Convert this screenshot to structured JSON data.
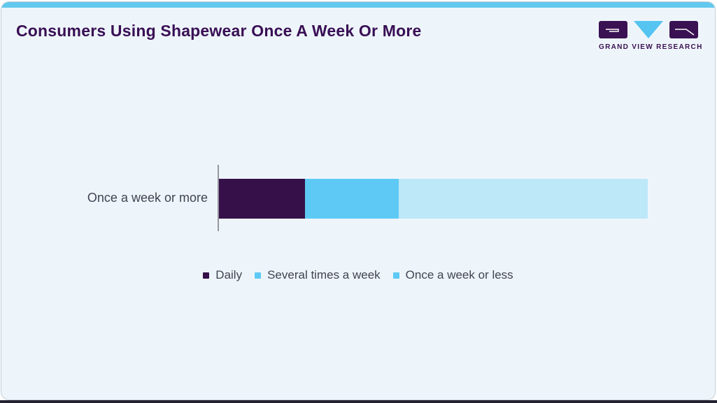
{
  "header": {
    "title": "Consumers Using Shapewear Once A Week Or More",
    "brand": "GRAND VIEW RESEARCH"
  },
  "colors": {
    "accent_top_strip": "#61c8ee",
    "card_background": "#eef5fa",
    "card_border": "#c4cfd7",
    "title_text": "#390f55",
    "label_text": "#414351",
    "axis_line": "#97979f",
    "bottom_edge_strip": "#232230",
    "logo_purple": "#3a1152",
    "logo_blue": "#55c4f0"
  },
  "chart_data": {
    "type": "bar",
    "orientation": "horizontal",
    "stacked": true,
    "title": "Consumers Using Shapewear Once A Week Or More",
    "categories": [
      "Once a week or more"
    ],
    "series": [
      {
        "name": "Daily",
        "values": [
          20
        ],
        "color": "#351049",
        "legend_marker_color": "#351049"
      },
      {
        "name": "Several times a week",
        "values": [
          22
        ],
        "color": "#5dc9f4",
        "legend_marker_color": "#5dc9f4"
      },
      {
        "name": "Once a week or less",
        "values": [
          58
        ],
        "color": "#bce8f8",
        "legend_marker_color": "#5dc9f4"
      }
    ],
    "xlim": [
      0,
      100
    ],
    "grid": false,
    "axis_tick_labels_shown": false,
    "value_labels_shown": false,
    "legend_position": "bottom-center"
  }
}
